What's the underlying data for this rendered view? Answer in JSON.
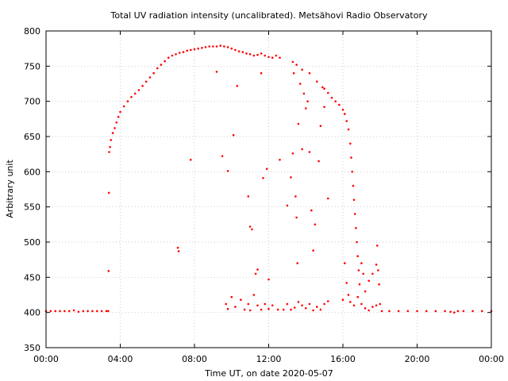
{
  "chart_data": {
    "type": "scatter",
    "title": "Total UV radiation intensity (uncalibrated). Metsähovi Radio Observatory",
    "xlabel": "Time UT, on date 2020-05-07",
    "ylabel": "Arbitrary unit",
    "x_unit": "hours UT",
    "xlim": [
      0,
      24
    ],
    "ylim": [
      350,
      800
    ],
    "x_ticks": [
      {
        "value": 0,
        "label": "00:00"
      },
      {
        "value": 4,
        "label": "04:00"
      },
      {
        "value": 8,
        "label": "08:00"
      },
      {
        "value": 12,
        "label": "12:00"
      },
      {
        "value": 16,
        "label": "16:00"
      },
      {
        "value": 20,
        "label": "20:00"
      },
      {
        "value": 24,
        "label": "00:00"
      }
    ],
    "y_ticks": [
      350,
      400,
      450,
      500,
      550,
      600,
      650,
      700,
      750,
      800
    ],
    "grid": true,
    "marker_color": "#ff0000",
    "series": [
      {
        "points": [
          [
            0.0,
            402
          ],
          [
            0.25,
            402
          ],
          [
            0.5,
            402
          ],
          [
            0.75,
            402
          ],
          [
            1.0,
            402
          ],
          [
            1.25,
            402
          ],
          [
            1.5,
            403
          ],
          [
            1.75,
            401
          ],
          [
            2.0,
            402
          ],
          [
            2.25,
            402
          ],
          [
            2.5,
            402
          ],
          [
            2.75,
            402
          ],
          [
            3.0,
            402
          ],
          [
            3.25,
            402
          ],
          [
            3.35,
            402
          ],
          [
            3.37,
            459
          ],
          [
            3.39,
            570
          ],
          [
            3.4,
            628
          ],
          [
            3.45,
            635
          ],
          [
            3.5,
            645
          ],
          [
            3.6,
            655
          ],
          [
            3.7,
            662
          ],
          [
            3.8,
            670
          ],
          [
            3.9,
            678
          ],
          [
            4.0,
            685
          ],
          [
            4.2,
            693
          ],
          [
            4.4,
            700
          ],
          [
            4.6,
            706
          ],
          [
            4.8,
            711
          ],
          [
            5.0,
            716
          ],
          [
            5.2,
            722
          ],
          [
            5.4,
            728
          ],
          [
            5.6,
            734
          ],
          [
            5.8,
            740
          ],
          [
            6.0,
            747
          ],
          [
            6.2,
            752
          ],
          [
            6.4,
            757
          ],
          [
            6.6,
            762
          ],
          [
            6.8,
            765
          ],
          [
            7.0,
            767
          ],
          [
            7.2,
            769
          ],
          [
            7.4,
            770
          ],
          [
            7.6,
            772
          ],
          [
            7.8,
            773
          ],
          [
            8.0,
            774
          ],
          [
            8.2,
            775
          ],
          [
            8.4,
            776
          ],
          [
            8.6,
            777
          ],
          [
            8.8,
            778
          ],
          [
            9.0,
            778
          ],
          [
            9.2,
            778
          ],
          [
            9.4,
            779
          ],
          [
            9.6,
            778
          ],
          [
            9.8,
            777
          ],
          [
            10.0,
            775
          ],
          [
            10.2,
            773
          ],
          [
            10.4,
            771
          ],
          [
            10.6,
            770
          ],
          [
            10.8,
            768
          ],
          [
            11.0,
            767
          ],
          [
            11.2,
            765
          ],
          [
            11.4,
            766
          ],
          [
            11.6,
            768
          ],
          [
            11.8,
            765
          ],
          [
            12.0,
            763
          ],
          [
            12.2,
            762
          ],
          [
            12.4,
            765
          ],
          [
            12.6,
            762
          ],
          [
            13.3,
            756
          ],
          [
            13.5,
            752
          ],
          [
            13.8,
            745
          ],
          [
            14.2,
            740
          ],
          [
            14.6,
            728
          ],
          [
            14.9,
            720
          ],
          [
            15.0,
            718
          ],
          [
            15.2,
            712
          ],
          [
            15.4,
            705
          ],
          [
            15.6,
            700
          ],
          [
            15.8,
            695
          ],
          [
            16.0,
            688
          ],
          [
            16.1,
            682
          ],
          [
            16.2,
            672
          ],
          [
            16.3,
            660
          ],
          [
            16.4,
            640
          ],
          [
            16.45,
            620
          ],
          [
            16.5,
            600
          ],
          [
            16.55,
            580
          ],
          [
            16.6,
            560
          ],
          [
            16.65,
            540
          ],
          [
            16.7,
            520
          ],
          [
            16.75,
            500
          ],
          [
            16.8,
            480
          ],
          [
            16.85,
            460
          ],
          [
            7.1,
            492
          ],
          [
            7.15,
            487
          ],
          [
            7.8,
            617
          ],
          [
            9.2,
            742
          ],
          [
            9.5,
            622
          ],
          [
            9.8,
            601
          ],
          [
            10.1,
            652
          ],
          [
            10.3,
            722
          ],
          [
            10.9,
            565
          ],
          [
            11.0,
            522
          ],
          [
            11.1,
            518
          ],
          [
            11.3,
            455
          ],
          [
            11.4,
            461
          ],
          [
            11.6,
            740
          ],
          [
            11.7,
            591
          ],
          [
            11.9,
            604
          ],
          [
            12.0,
            447
          ],
          [
            12.6,
            617
          ],
          [
            13.0,
            552
          ],
          [
            13.2,
            592
          ],
          [
            13.3,
            626
          ],
          [
            13.35,
            740
          ],
          [
            13.45,
            565
          ],
          [
            13.5,
            535
          ],
          [
            13.55,
            470
          ],
          [
            13.6,
            668
          ],
          [
            13.7,
            725
          ],
          [
            13.8,
            632
          ],
          [
            13.9,
            711
          ],
          [
            14.0,
            690
          ],
          [
            14.1,
            700
          ],
          [
            14.2,
            628
          ],
          [
            14.3,
            545
          ],
          [
            14.4,
            488
          ],
          [
            14.5,
            525
          ],
          [
            14.7,
            615
          ],
          [
            14.8,
            665
          ],
          [
            15.0,
            692
          ],
          [
            15.2,
            562
          ],
          [
            16.1,
            470
          ],
          [
            16.2,
            442
          ],
          [
            16.3,
            425
          ],
          [
            16.9,
            440
          ],
          [
            17.0,
            470
          ],
          [
            17.1,
            455
          ],
          [
            17.2,
            430
          ],
          [
            17.4,
            445
          ],
          [
            17.6,
            455
          ],
          [
            17.8,
            468
          ],
          [
            17.85,
            495
          ],
          [
            17.9,
            460
          ],
          [
            17.95,
            440
          ],
          [
            9.7,
            412
          ],
          [
            9.8,
            405
          ],
          [
            10.0,
            422
          ],
          [
            10.2,
            408
          ],
          [
            10.5,
            418
          ],
          [
            10.7,
            404
          ],
          [
            10.9,
            412
          ],
          [
            11.0,
            403
          ],
          [
            11.2,
            425
          ],
          [
            11.4,
            410
          ],
          [
            11.6,
            404
          ],
          [
            11.8,
            412
          ],
          [
            12.0,
            405
          ],
          [
            12.2,
            410
          ],
          [
            12.5,
            404
          ],
          [
            12.8,
            404
          ],
          [
            13.0,
            412
          ],
          [
            13.2,
            404
          ],
          [
            13.4,
            407
          ],
          [
            13.6,
            415
          ],
          [
            13.8,
            410
          ],
          [
            14.0,
            406
          ],
          [
            14.2,
            412
          ],
          [
            14.4,
            403
          ],
          [
            14.6,
            408
          ],
          [
            14.8,
            404
          ],
          [
            15.0,
            412
          ],
          [
            15.2,
            416
          ],
          [
            16.0,
            418
          ],
          [
            16.4,
            415
          ],
          [
            16.6,
            410
          ],
          [
            16.8,
            422
          ],
          [
            17.0,
            412
          ],
          [
            17.2,
            406
          ],
          [
            17.4,
            403
          ],
          [
            17.6,
            408
          ],
          [
            17.8,
            410
          ],
          [
            18.0,
            412
          ],
          [
            18.1,
            402
          ],
          [
            18.5,
            402
          ],
          [
            19.0,
            402
          ],
          [
            19.5,
            402
          ],
          [
            20.0,
            402
          ],
          [
            20.5,
            402
          ],
          [
            21.0,
            402
          ],
          [
            21.5,
            402
          ],
          [
            21.8,
            401
          ],
          [
            22.0,
            400
          ],
          [
            22.2,
            402
          ],
          [
            22.5,
            402
          ],
          [
            23.0,
            402
          ],
          [
            23.5,
            402
          ],
          [
            24.0,
            402
          ]
        ]
      }
    ]
  }
}
